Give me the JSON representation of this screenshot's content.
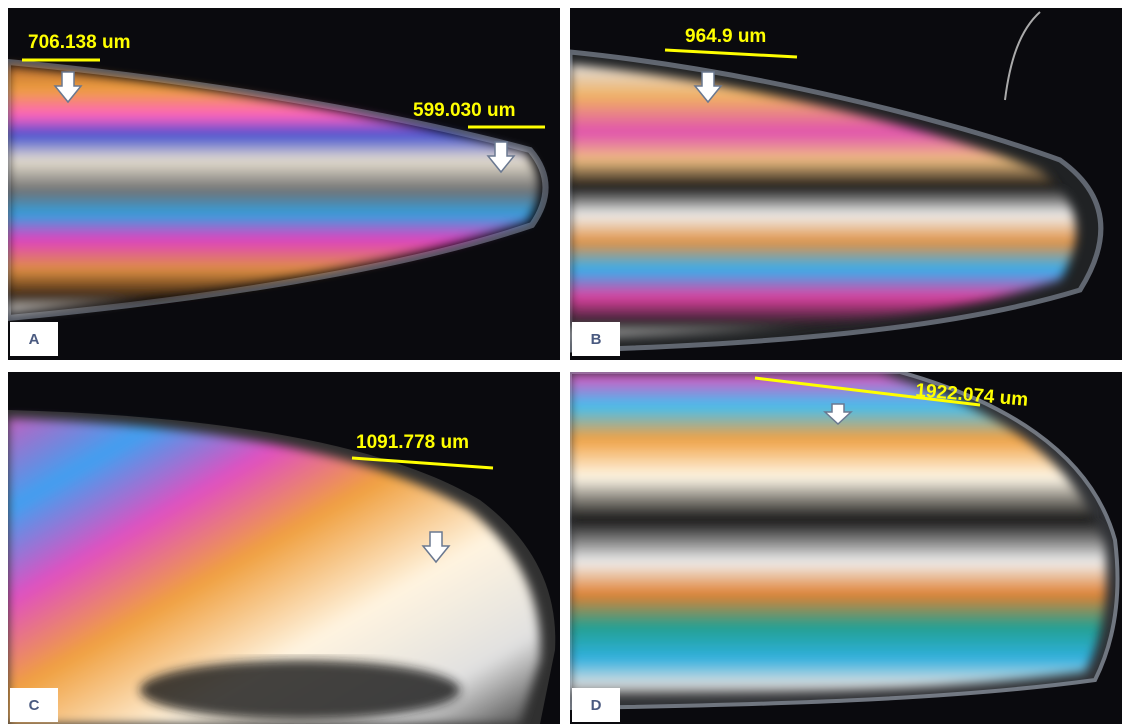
{
  "panels": [
    {
      "label": "A",
      "measurements": [
        "706.138 um",
        "599.030 um"
      ]
    },
    {
      "label": "B",
      "measurements": [
        "964.9 um"
      ]
    },
    {
      "label": "C",
      "measurements": [
        "1091.778 um"
      ]
    },
    {
      "label": "D",
      "measurements": [
        "1922.074 um"
      ]
    }
  ]
}
